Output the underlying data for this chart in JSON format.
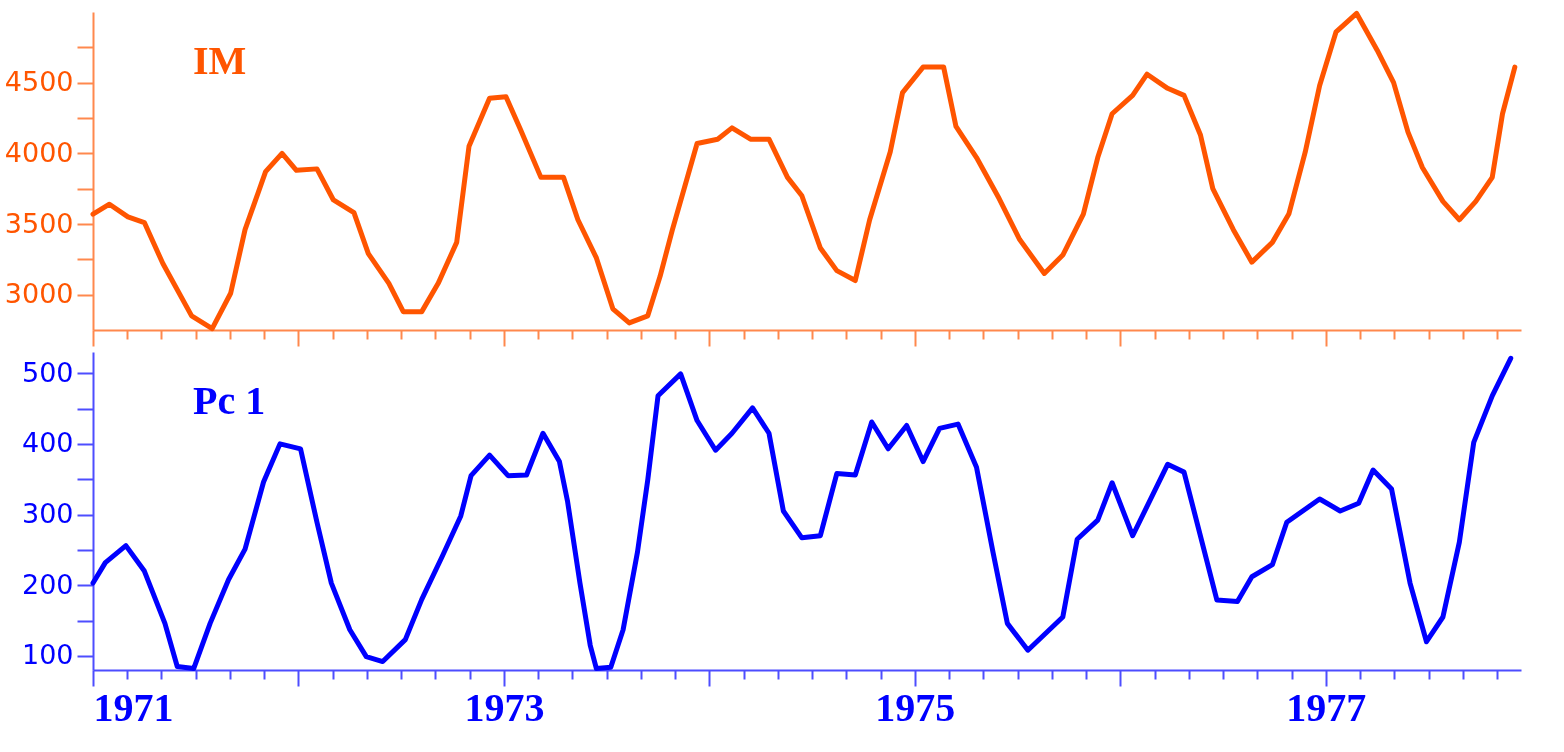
{
  "chart_data": [
    {
      "type": "line",
      "tick_labels": "y",
      "grid": false,
      "legend": false,
      "marker": "none",
      "line_style": "solid",
      "xlim": [
        1971,
        1977.95
      ],
      "xticks": [
        {
          "value": 1971,
          "label": null
        },
        {
          "value": 1971.1667,
          "label": null
        },
        {
          "value": 1971.3333,
          "label": null
        },
        {
          "value": 1971.5,
          "label": null
        },
        {
          "value": 1971.6667,
          "label": null
        },
        {
          "value": 1971.8333,
          "label": null
        },
        {
          "value": 1972,
          "label": null
        },
        {
          "value": 1972.1667,
          "label": null
        },
        {
          "value": 1972.3333,
          "label": null
        },
        {
          "value": 1972.5,
          "label": null
        },
        {
          "value": 1972.6667,
          "label": null
        },
        {
          "value": 1972.8333,
          "label": null
        },
        {
          "value": 1973,
          "label": null
        },
        {
          "value": 1973.1667,
          "label": null
        },
        {
          "value": 1973.3333,
          "label": null
        },
        {
          "value": 1973.5,
          "label": null
        },
        {
          "value": 1973.6667,
          "label": null
        },
        {
          "value": 1973.8333,
          "label": null
        },
        {
          "value": 1974,
          "label": null
        },
        {
          "value": 1974.1667,
          "label": null
        },
        {
          "value": 1974.3333,
          "label": null
        },
        {
          "value": 1974.5,
          "label": null
        },
        {
          "value": 1974.6667,
          "label": null
        },
        {
          "value": 1974.8333,
          "label": null
        },
        {
          "value": 1975,
          "label": null
        },
        {
          "value": 1975.1667,
          "label": null
        },
        {
          "value": 1975.3333,
          "label": null
        },
        {
          "value": 1975.5,
          "label": null
        },
        {
          "value": 1975.6667,
          "label": null
        },
        {
          "value": 1975.8333,
          "label": null
        },
        {
          "value": 1976,
          "label": null
        },
        {
          "value": 1976.1667,
          "label": null
        },
        {
          "value": 1976.3333,
          "label": null
        },
        {
          "value": 1976.5,
          "label": null
        },
        {
          "value": 1976.6667,
          "label": null
        },
        {
          "value": 1976.8333,
          "label": null
        },
        {
          "value": 1977,
          "label": null
        },
        {
          "value": 1977.1667,
          "label": null
        },
        {
          "value": 1977.3333,
          "label": null
        },
        {
          "value": 1977.5,
          "label": null
        },
        {
          "value": 1977.6667,
          "label": null
        },
        {
          "value": 1977.8333,
          "label": null
        }
      ],
      "ylim": [
        2750,
        5000
      ],
      "yticks": [
        3000,
        {
          "value": 3250,
          "label": null
        },
        3500,
        {
          "value": 3750,
          "label": null
        },
        4000,
        {
          "value": 4250,
          "label": null
        },
        4500,
        {
          "value": 4750,
          "label": null
        }
      ],
      "series": [
        {
          "name": "IM",
          "color": "#ff5500",
          "x": [
            1971.0,
            1971.08,
            1971.17,
            1971.25,
            1971.34,
            1971.48,
            1971.58,
            1971.67,
            1971.74,
            1971.84,
            1971.92,
            1971.99,
            1972.09,
            1972.17,
            1972.27,
            1972.34,
            1972.44,
            1972.51,
            1972.6,
            1972.68,
            1972.77,
            1972.83,
            1972.93,
            1973.01,
            1973.08,
            1973.18,
            1973.29,
            1973.36,
            1973.45,
            1973.53,
            1973.61,
            1973.7,
            1973.76,
            1973.82,
            1973.94,
            1974.04,
            1974.11,
            1974.2,
            1974.29,
            1974.38,
            1974.45,
            1974.54,
            1974.62,
            1974.71,
            1974.78,
            1974.88,
            1974.94,
            1975.04,
            1975.14,
            1975.2,
            1975.3,
            1975.41,
            1975.51,
            1975.63,
            1975.72,
            1975.82,
            1975.89,
            1975.96,
            1976.06,
            1976.13,
            1976.23,
            1976.31,
            1976.39,
            1976.45,
            1976.55,
            1976.64,
            1976.74,
            1976.82,
            1976.9,
            1976.97,
            1977.05,
            1977.15,
            1977.25,
            1977.33,
            1977.4,
            1977.47,
            1977.57,
            1977.65,
            1977.73,
            1977.81,
            1977.86,
            1977.92
          ],
          "values": [
            3570,
            3640,
            3550,
            3510,
            3220,
            2850,
            2760,
            3010,
            3460,
            3870,
            4000,
            3880,
            3890,
            3670,
            3580,
            3290,
            3080,
            2880,
            2880,
            3080,
            3370,
            4050,
            4390,
            4400,
            4170,
            3830,
            3830,
            3530,
            3260,
            2900,
            2800,
            2850,
            3130,
            3460,
            4070,
            4100,
            4180,
            4100,
            4100,
            3830,
            3700,
            3330,
            3170,
            3100,
            3530,
            4010,
            4430,
            4610,
            4610,
            4190,
            3970,
            3680,
            3390,
            3150,
            3280,
            3570,
            3970,
            4280,
            4410,
            4560,
            4460,
            4410,
            4130,
            3750,
            3460,
            3230,
            3370,
            3570,
            4010,
            4480,
            4860,
            4990,
            4730,
            4500,
            4150,
            3900,
            3660,
            3530,
            3660,
            3830,
            4280,
            4610
          ]
        }
      ]
    },
    {
      "type": "line",
      "grid": false,
      "legend": false,
      "marker": "none",
      "line_style": "solid",
      "xlim": [
        1971,
        1977.95
      ],
      "xticks": [
        1971,
        {
          "value": 1971.1667,
          "label": null
        },
        {
          "value": 1971.3333,
          "label": null
        },
        {
          "value": 1971.5,
          "label": null
        },
        {
          "value": 1971.6667,
          "label": null
        },
        {
          "value": 1971.8333,
          "label": null
        },
        {
          "value": 1972,
          "label": null
        },
        {
          "value": 1972.1667,
          "label": null
        },
        {
          "value": 1972.3333,
          "label": null
        },
        {
          "value": 1972.5,
          "label": null
        },
        {
          "value": 1972.6667,
          "label": null
        },
        {
          "value": 1972.8333,
          "label": null
        },
        1973,
        {
          "value": 1973.1667,
          "label": null
        },
        {
          "value": 1973.3333,
          "label": null
        },
        {
          "value": 1973.5,
          "label": null
        },
        {
          "value": 1973.6667,
          "label": null
        },
        {
          "value": 1973.8333,
          "label": null
        },
        {
          "value": 1974,
          "label": null
        },
        {
          "value": 1974.1667,
          "label": null
        },
        {
          "value": 1974.3333,
          "label": null
        },
        {
          "value": 1974.5,
          "label": null
        },
        {
          "value": 1974.6667,
          "label": null
        },
        {
          "value": 1974.8333,
          "label": null
        },
        1975,
        {
          "value": 1975.1667,
          "label": null
        },
        {
          "value": 1975.3333,
          "label": null
        },
        {
          "value": 1975.5,
          "label": null
        },
        {
          "value": 1975.6667,
          "label": null
        },
        {
          "value": 1975.8333,
          "label": null
        },
        {
          "value": 1976,
          "label": null
        },
        {
          "value": 1976.1667,
          "label": null
        },
        {
          "value": 1976.3333,
          "label": null
        },
        {
          "value": 1976.5,
          "label": null
        },
        {
          "value": 1976.6667,
          "label": null
        },
        {
          "value": 1976.8333,
          "label": null
        },
        1977,
        {
          "value": 1977.1667,
          "label": null
        },
        {
          "value": 1977.3333,
          "label": null
        },
        {
          "value": 1977.5,
          "label": null
        },
        {
          "value": 1977.6667,
          "label": null
        },
        {
          "value": 1977.8333,
          "label": null
        }
      ],
      "ylim": [
        80,
        530
      ],
      "yticks": [
        100,
        {
          "value": 150,
          "label": null
        },
        200,
        {
          "value": 250,
          "label": null
        },
        300,
        {
          "value": 350,
          "label": null
        },
        400,
        {
          "value": 450,
          "label": null
        },
        500
      ],
      "series": [
        {
          "name": "Pc 1",
          "color": "#0000ff",
          "x": [
            1971.0,
            1971.06,
            1971.16,
            1971.25,
            1971.35,
            1971.41,
            1971.49,
            1971.57,
            1971.66,
            1971.74,
            1971.83,
            1971.91,
            1972.01,
            1972.09,
            1972.16,
            1972.25,
            1972.33,
            1972.41,
            1972.52,
            1972.6,
            1972.7,
            1972.79,
            1972.84,
            1972.93,
            1973.02,
            1973.11,
            1973.19,
            1973.27,
            1973.31,
            1973.37,
            1973.42,
            1973.45,
            1973.52,
            1973.58,
            1973.65,
            1973.7,
            1973.75,
            1973.86,
            1973.94,
            1974.03,
            1974.11,
            1974.21,
            1974.29,
            1974.36,
            1974.45,
            1974.54,
            1974.62,
            1974.71,
            1974.79,
            1974.87,
            1974.96,
            1975.04,
            1975.12,
            1975.21,
            1975.3,
            1975.38,
            1975.45,
            1975.55,
            1975.72,
            1975.79,
            1975.89,
            1975.96,
            1976.06,
            1976.23,
            1976.31,
            1976.47,
            1976.57,
            1976.64,
            1976.74,
            1976.81,
            1976.97,
            1977.07,
            1977.16,
            1977.23,
            1977.32,
            1977.41,
            1977.49,
            1977.57,
            1977.65,
            1977.72,
            1977.81,
            1977.9
          ],
          "values": [
            203,
            232,
            256,
            220,
            146,
            85,
            82,
            146,
            208,
            251,
            346,
            400,
            393,
            289,
            203,
            137,
            99,
            92,
            123,
            180,
            241,
            298,
            355,
            384,
            355,
            356,
            415,
            375,
            318,
            203,
            115,
            82,
            84,
            137,
            247,
            349,
            468,
            499,
            433,
            391,
            415,
            451,
            415,
            305,
            267,
            270,
            358,
            356,
            431,
            393,
            426,
            375,
            422,
            428,
            367,
            247,
            146,
            108,
            155,
            265,
            292,
            345,
            270,
            371,
            360,
            179,
            177,
            212,
            229,
            289,
            322,
            305,
            316,
            363,
            336,
            203,
            120,
            155,
            261,
            402,
            468,
            521
          ]
        }
      ]
    }
  ]
}
